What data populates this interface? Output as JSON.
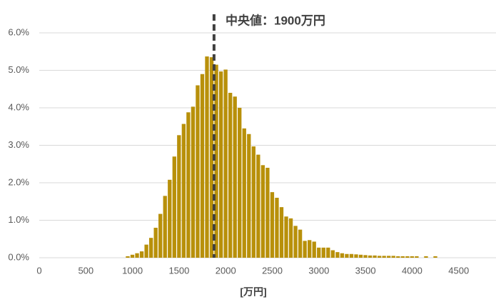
{
  "chart_data": {
    "type": "histogram",
    "annotation": "中央値：1900万円",
    "median_x": 1875,
    "xlabel": "[万円]",
    "color": "#b8900a",
    "line_color": "#404040",
    "bins": [
      925,
      975,
      1025,
      1075,
      1125,
      1175,
      1225,
      1275,
      1325,
      1375,
      1425,
      1475,
      1525,
      1575,
      1625,
      1675,
      1725,
      1775,
      1825,
      1875,
      1925,
      1975,
      2025,
      2075,
      2125,
      2175,
      2225,
      2275,
      2325,
      2375,
      2425,
      2475,
      2525,
      2575,
      2625,
      2675,
      2725,
      2775,
      2825,
      2875,
      2925,
      2975,
      3025,
      3075,
      3125,
      3175,
      3225,
      3275,
      3325,
      3375,
      3425,
      3475,
      3525,
      3575,
      3625,
      3675,
      3725,
      3775,
      3825,
      3875,
      3925,
      3975,
      4025,
      4075,
      4125,
      4175,
      4225,
      4275
    ],
    "values": [
      0.04,
      0.08,
      0.12,
      0.17,
      0.35,
      0.53,
      0.8,
      1.17,
      1.65,
      2.08,
      2.7,
      3.27,
      3.57,
      3.88,
      4.03,
      4.6,
      4.9,
      5.37,
      5.35,
      5.15,
      4.97,
      5.02,
      4.4,
      4.3,
      4.0,
      3.45,
      3.3,
      2.97,
      2.75,
      2.47,
      2.4,
      1.75,
      1.6,
      1.35,
      1.1,
      1.05,
      0.85,
      0.75,
      0.45,
      0.47,
      0.43,
      0.27,
      0.27,
      0.27,
      0.2,
      0.15,
      0.12,
      0.1,
      0.1,
      0.09,
      0.08,
      0.07,
      0.06,
      0.06,
      0.05,
      0.05,
      0.05,
      0.05,
      0.04,
      0.04,
      0.04,
      0.04,
      0.04,
      0,
      0.04,
      0,
      0.04
    ],
    "xlim": [
      0,
      4900
    ],
    "xticks": [
      0,
      500,
      1000,
      1500,
      2000,
      2500,
      3000,
      3500,
      4000,
      4500
    ],
    "ylim": [
      0,
      6
    ],
    "yticks": [
      {
        "value": 0,
        "label": "0.0%"
      },
      {
        "value": 1,
        "label": "1.0%"
      },
      {
        "value": 2,
        "label": "2.0%"
      },
      {
        "value": 3,
        "label": "3.0%"
      },
      {
        "value": 4,
        "label": "4.0%"
      },
      {
        "value": 5,
        "label": "5.0%"
      },
      {
        "value": 6,
        "label": "6.0%"
      }
    ],
    "grid": true
  }
}
